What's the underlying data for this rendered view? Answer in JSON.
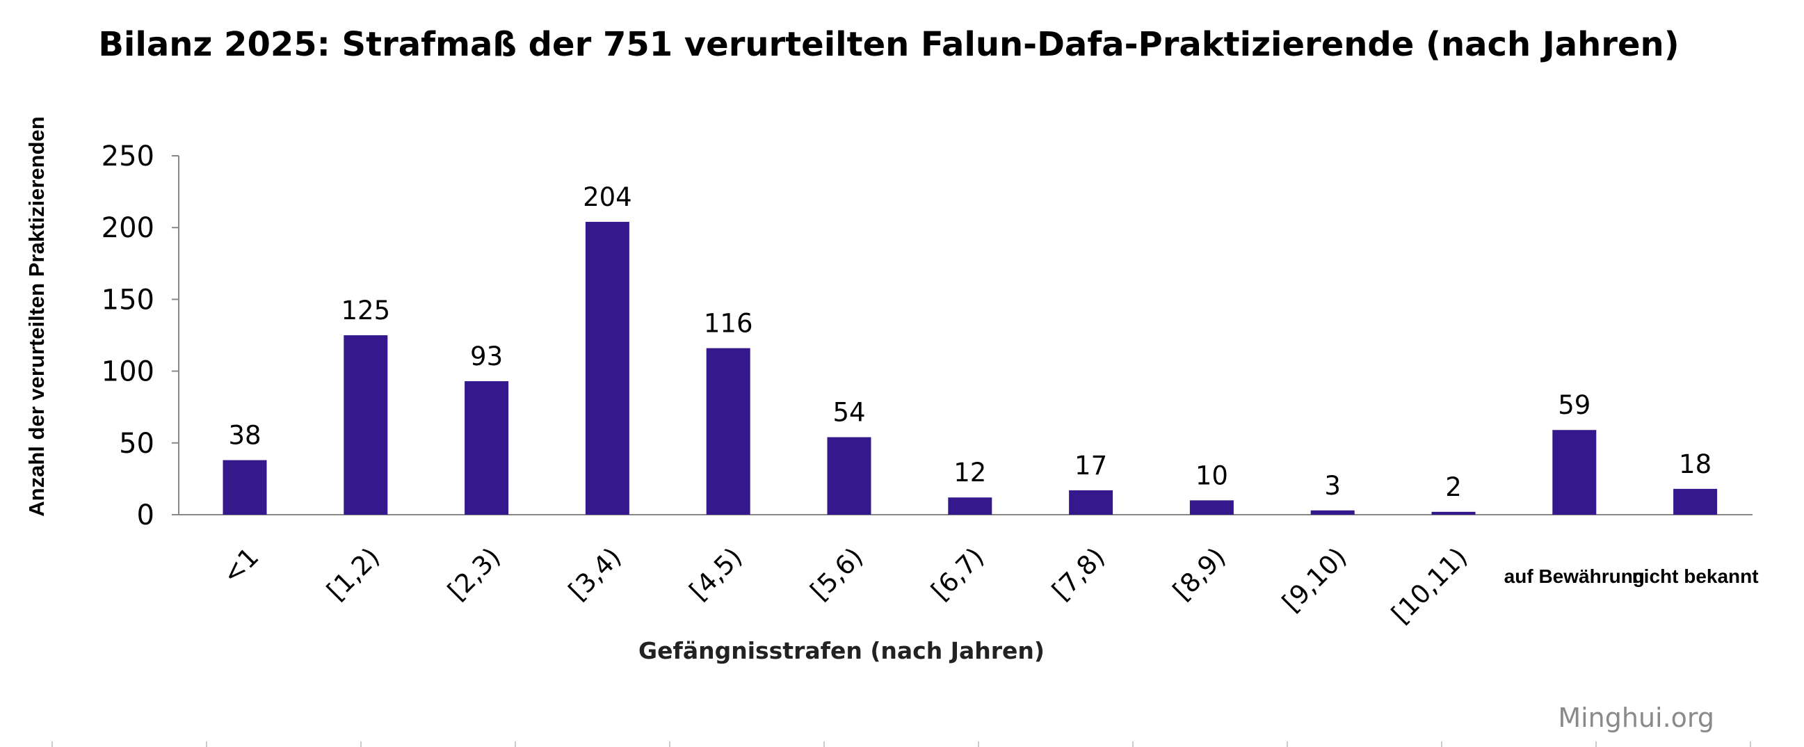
{
  "chart_data": {
    "type": "bar",
    "title": "Bilanz 2025: Strafmaß der 751 verurteilten Falun-Dafa-Praktizierende (nach Jahren)",
    "xlabel": "Gefängnisstrafen (nach Jahren)",
    "ylabel": "Anzahl der verurteilten Praktizierenden",
    "categories": [
      "<1",
      "[1,2)",
      "[2,3)",
      "[3,4)",
      "[4,5)",
      "[5,6)",
      "[6,7)",
      "[7,8)",
      "[8,9)",
      "[9,10)",
      "[10,11)",
      "auf Bewährung",
      "nicht bekannt"
    ],
    "values": [
      38,
      125,
      93,
      204,
      116,
      54,
      12,
      17,
      10,
      3,
      2,
      59,
      18
    ],
    "ylim": [
      0,
      250
    ],
    "yticks": [
      0,
      50,
      100,
      150,
      200,
      250
    ],
    "grid": false,
    "legend": "none",
    "bar_color": "#35198c",
    "axis_color": "#888888"
  },
  "watermark": "Minghui.org"
}
